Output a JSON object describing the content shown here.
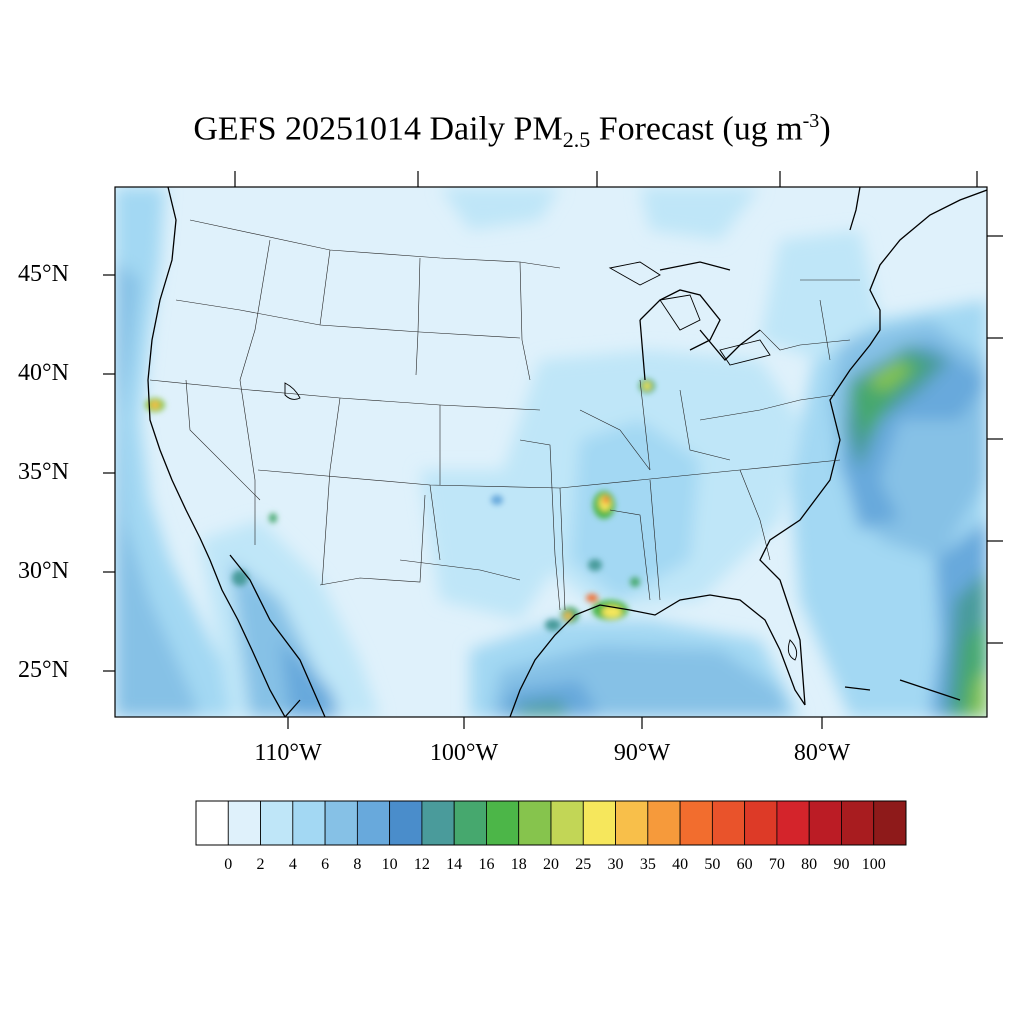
{
  "title": {
    "prefix": "GEFS 20251014 Daily PM",
    "subscript": "2.5",
    "middle": " Forecast (ug m",
    "superscript": "-3",
    "suffix": ")"
  },
  "map": {
    "lat_labels": [
      "45°N",
      "40°N",
      "35°N",
      "30°N",
      "25°N"
    ],
    "lon_labels": [
      "110°W",
      "100°W",
      "90°W",
      "80°W"
    ]
  },
  "colorbar": {
    "labels": [
      "0",
      "2",
      "4",
      "6",
      "8",
      "10",
      "12",
      "14",
      "16",
      "18",
      "20",
      "25",
      "30",
      "35",
      "40",
      "50",
      "60",
      "70",
      "80",
      "90",
      "100"
    ],
    "colors": [
      "#ffffff",
      "#dff1fb",
      "#bfe6f8",
      "#a3d8f3",
      "#86c1e6",
      "#68a9dc",
      "#4a8dcb",
      "#4a9b9b",
      "#46a86e",
      "#4cb648",
      "#86c44d",
      "#c2d656",
      "#f6e75c",
      "#f8bf4a",
      "#f69a3b",
      "#f26d2e",
      "#e9532b",
      "#dd3a27",
      "#d4242b",
      "#bb1c25",
      "#a81c1f",
      "#8e1a1a"
    ]
  }
}
